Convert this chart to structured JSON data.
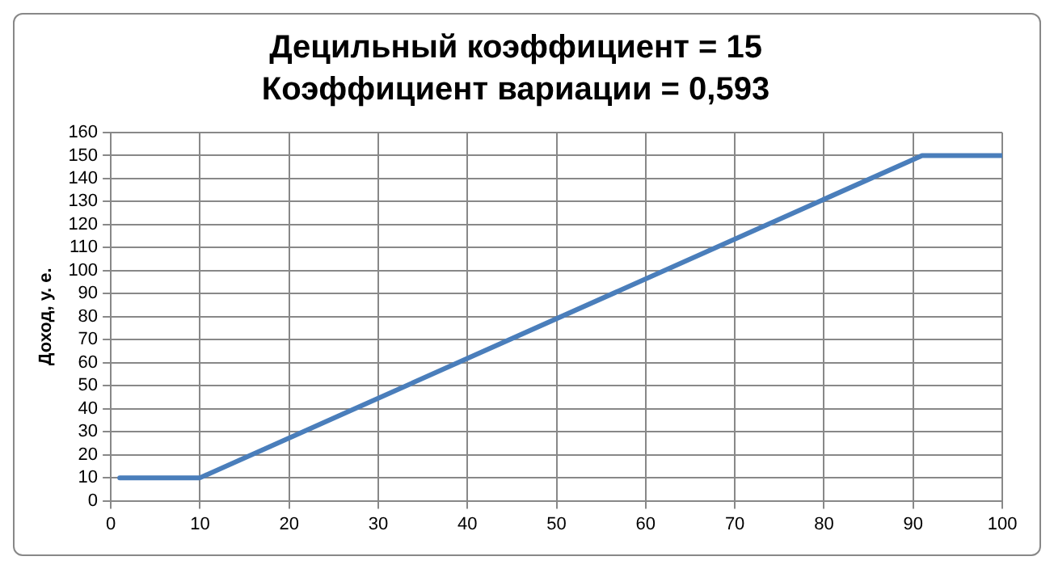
{
  "chart_data": {
    "type": "line",
    "title": "Децильный коэффициент = 15",
    "subtitle": "Коэффициент вариации = 0,593",
    "ylabel": "Доход, у. е.",
    "series": [
      {
        "color": "#4a7ebb",
        "x": [
          1,
          10,
          91,
          100
        ],
        "values": [
          10,
          10,
          150,
          150
        ]
      }
    ],
    "xlim": [
      0,
      100
    ],
    "xticks": [
      0,
      10,
      20,
      30,
      40,
      50,
      60,
      70,
      80,
      90,
      100
    ],
    "ylim": [
      0,
      160
    ],
    "yticks": [
      0,
      10,
      20,
      30,
      40,
      50,
      60,
      70,
      80,
      90,
      100,
      110,
      120,
      130,
      140,
      150,
      160
    ],
    "grid": true,
    "legend": false,
    "marker": "none",
    "line_style": "solid"
  }
}
